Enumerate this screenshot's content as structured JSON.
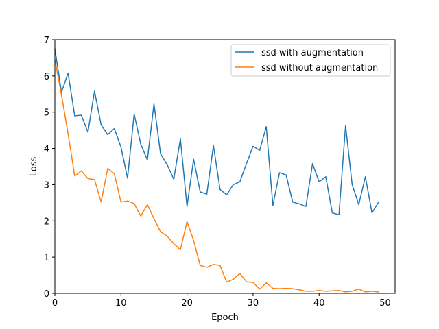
{
  "chart_data": {
    "type": "line",
    "xlabel": "Epoch",
    "ylabel": "Loss",
    "xlim": [
      0,
      51.5
    ],
    "ylim": [
      0,
      7
    ],
    "xticks": [
      0,
      10,
      20,
      30,
      40,
      50
    ],
    "yticks": [
      0,
      1,
      2,
      3,
      4,
      5,
      6,
      7
    ],
    "grid": false,
    "legend_position": "top-right",
    "x": [
      0,
      1,
      2,
      3,
      4,
      5,
      6,
      7,
      8,
      9,
      10,
      11,
      12,
      13,
      14,
      15,
      16,
      17,
      18,
      19,
      20,
      21,
      22,
      23,
      24,
      25,
      26,
      27,
      28,
      29,
      30,
      31,
      32,
      33,
      34,
      35,
      36,
      37,
      38,
      39,
      40,
      41,
      42,
      43,
      44,
      45,
      46,
      47,
      48,
      49
    ],
    "series": [
      {
        "name": "ssd with augmentation",
        "color": "#1f77b4",
        "values": [
          6.75,
          5.55,
          6.08,
          4.9,
          4.92,
          4.45,
          5.58,
          4.65,
          4.38,
          4.55,
          4.04,
          3.18,
          4.95,
          4.12,
          3.68,
          5.23,
          3.85,
          3.55,
          3.15,
          4.27,
          2.4,
          3.7,
          2.8,
          2.74,
          4.08,
          2.87,
          2.72,
          3.0,
          3.08,
          3.58,
          4.06,
          3.95,
          4.6,
          2.43,
          3.33,
          3.27,
          2.52,
          2.47,
          2.4,
          3.58,
          3.08,
          3.22,
          2.22,
          2.17,
          4.63,
          3.0,
          2.45,
          3.22,
          2.22,
          2.52
        ]
      },
      {
        "name": "ssd without augmentation",
        "color": "#ff7f0e",
        "values": [
          6.45,
          5.48,
          4.4,
          3.24,
          3.38,
          3.17,
          3.14,
          2.52,
          3.45,
          3.3,
          2.52,
          2.55,
          2.48,
          2.13,
          2.45,
          2.06,
          1.7,
          1.58,
          1.37,
          1.2,
          1.98,
          1.46,
          0.77,
          0.72,
          0.8,
          0.77,
          0.31,
          0.39,
          0.55,
          0.32,
          0.3,
          0.12,
          0.29,
          0.14,
          0.13,
          0.14,
          0.13,
          0.1,
          0.06,
          0.06,
          0.08,
          0.06,
          0.07,
          0.08,
          0.04,
          0.06,
          0.12,
          0.04,
          0.06,
          0.04
        ]
      }
    ]
  }
}
